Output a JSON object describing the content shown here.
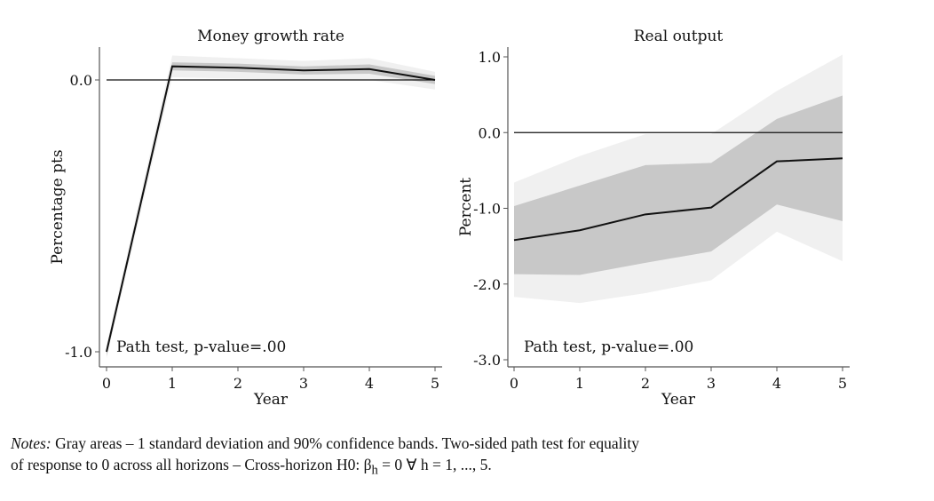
{
  "chart_data": [
    {
      "type": "line",
      "title": "Money growth rate",
      "xlabel": "Year",
      "ylabel": "Percentage pts",
      "x": [
        0,
        1,
        2,
        3,
        4,
        5
      ],
      "xticks": [
        "0",
        "1",
        "2",
        "3",
        "4",
        "5"
      ],
      "yticks": [
        0.0,
        -1.0
      ],
      "ytick_labels": [
        "0.0",
        "-1.0"
      ],
      "ylim": [
        -1.05,
        0.12
      ],
      "annotation": "Path test, p-value=.00",
      "series": [
        {
          "name": "response",
          "values": [
            -1.0,
            0.05,
            0.045,
            0.035,
            0.04,
            0.0
          ]
        },
        {
          "name": "1 sd band upper",
          "values": [
            -0.985,
            0.065,
            0.06,
            0.05,
            0.057,
            0.015
          ]
        },
        {
          "name": "1 sd band lower",
          "values": [
            -1.015,
            0.035,
            0.03,
            0.02,
            0.023,
            -0.015
          ]
        },
        {
          "name": "90% band upper",
          "values": [
            -0.975,
            0.09,
            0.08,
            0.07,
            0.08,
            0.03
          ]
        },
        {
          "name": "90% band lower",
          "values": [
            -1.025,
            0.01,
            0.005,
            0.0,
            0.0,
            -0.035
          ]
        }
      ]
    },
    {
      "type": "line",
      "title": "Real output",
      "xlabel": "Year",
      "ylabel": "Percent",
      "x": [
        0,
        1,
        2,
        3,
        4,
        5
      ],
      "xticks": [
        "0",
        "1",
        "2",
        "3",
        "4",
        "5"
      ],
      "yticks": [
        1.0,
        0.0,
        -1.0,
        -2.0,
        -3.0
      ],
      "ytick_labels": [
        "1.0",
        "0.0",
        "-1.0",
        "-2.0",
        "-3.0"
      ],
      "ylim": [
        -3.1,
        1.1
      ],
      "annotation": "Path test, p-value=.00",
      "series": [
        {
          "name": "response",
          "values": [
            -1.42,
            -1.29,
            -1.08,
            -0.99,
            -0.38,
            -0.34
          ]
        },
        {
          "name": "1 sd band upper",
          "values": [
            -0.97,
            -0.7,
            -0.43,
            -0.4,
            0.18,
            0.49
          ]
        },
        {
          "name": "1 sd band lower",
          "values": [
            -1.87,
            -1.88,
            -1.72,
            -1.57,
            -0.95,
            -1.17
          ]
        },
        {
          "name": "90% band upper",
          "values": [
            -0.66,
            -0.31,
            -0.02,
            -0.02,
            0.55,
            1.03
          ]
        },
        {
          "name": "90% band lower",
          "values": [
            -2.17,
            -2.25,
            -2.12,
            -1.95,
            -1.31,
            -1.7
          ]
        }
      ]
    }
  ],
  "notes": {
    "label": "Notes:",
    "line1": " Gray areas – 1 standard deviation and 90% confidence bands. Two-sided path test for equality",
    "line2": "of response to 0 across all horizons – Cross-horizon H0: β",
    "sub": "h",
    "line2b": " = 0 ∀ h = 1, ..., 5."
  },
  "colors": {
    "outer_band": "#f0f0f0",
    "inner_band": "#c8c8c8",
    "line": "#111111"
  }
}
